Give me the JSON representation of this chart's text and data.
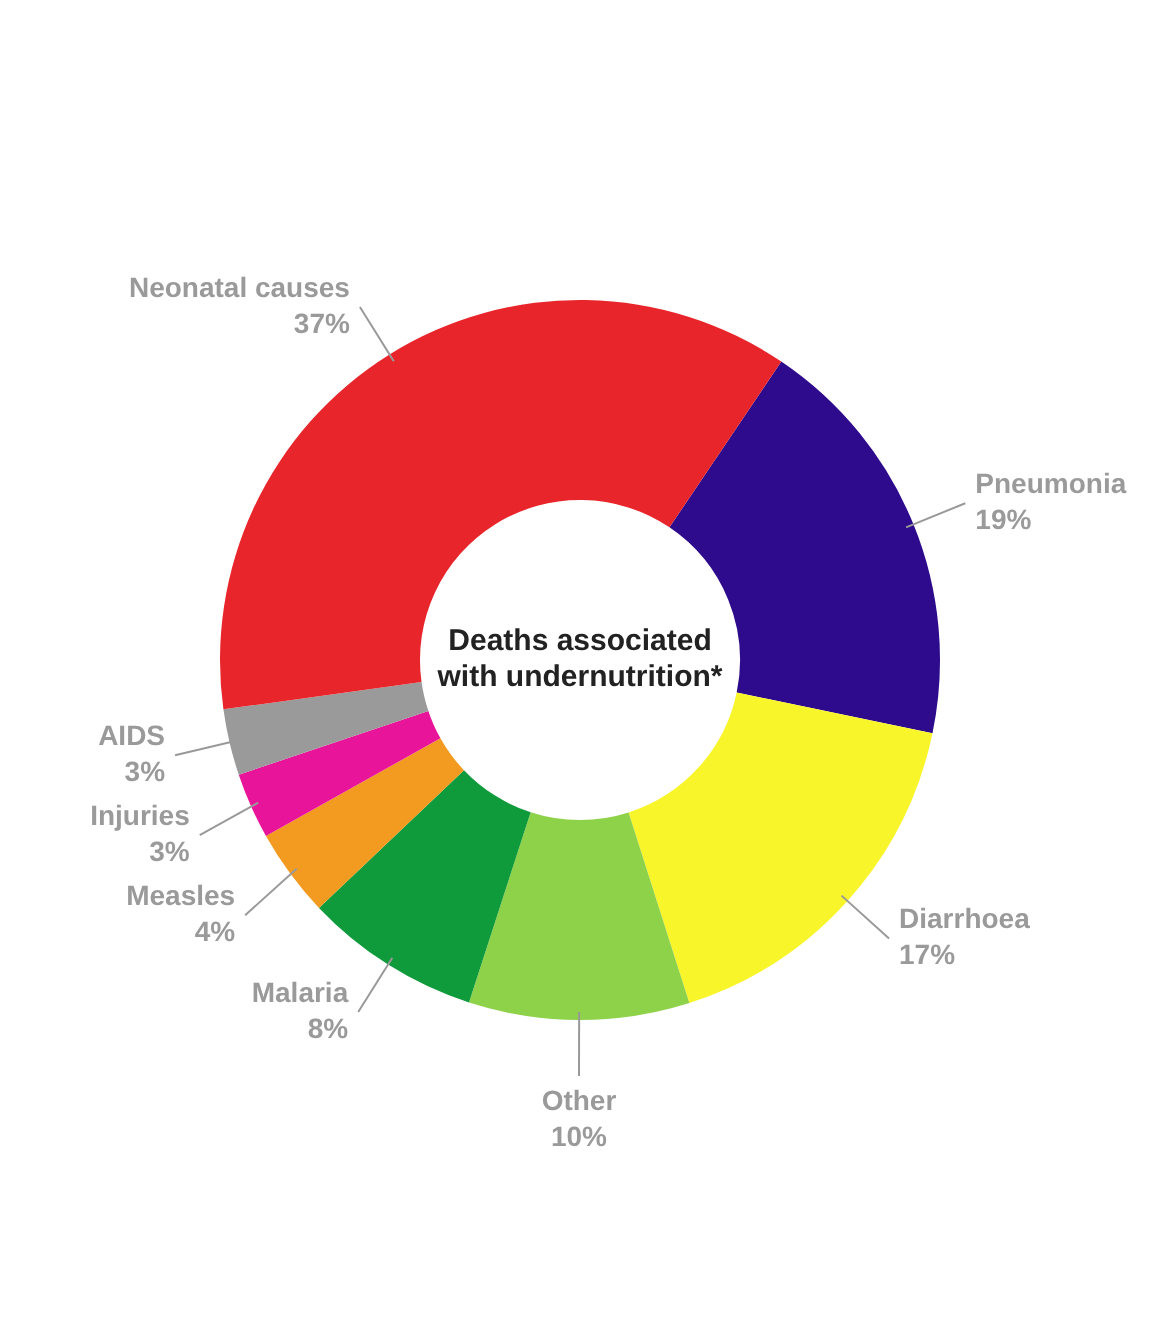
{
  "chart_data": {
    "type": "donut",
    "title": "Deaths associated with undernutrition*",
    "categories": [
      "Pneumonia",
      "Diarrhoea",
      "Other",
      "Malaria",
      "Measles",
      "Injuries",
      "AIDS",
      "Neonatal causes"
    ],
    "values": [
      19,
      17,
      10,
      8,
      4,
      3,
      3,
      37
    ],
    "colors": [
      "#2e0a8c",
      "#f8f52a",
      "#8ed24a",
      "#0f9a3c",
      "#f39a21",
      "#e8149a",
      "#9a9a9a",
      "#e8252a"
    ],
    "value_labels": [
      "19%",
      "17%",
      "10%",
      "8%",
      "4%",
      "3%",
      "3%",
      "37%"
    ],
    "legend": false
  }
}
